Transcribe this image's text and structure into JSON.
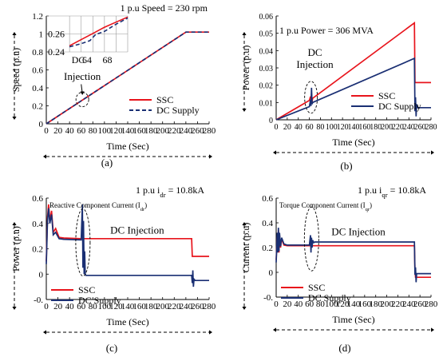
{
  "colors": {
    "ssc": "#e8141c",
    "dc": "#1a2f73",
    "axis": "#000000",
    "grid": "#9a9a9a"
  },
  "chart_data": [
    {
      "id": "a",
      "type": "line",
      "panel_label": "(a)",
      "header": "1 p.u Speed = 230 rpm",
      "xlabel": "Time (Sec)",
      "ylabel": "Speed (p.u)",
      "xlim": [
        0,
        280
      ],
      "ylim": [
        0,
        1.2
      ],
      "xticks": [
        "0",
        "20",
        "40",
        "60",
        "80",
        "100",
        "120",
        "140",
        "160",
        "180",
        "200",
        "220",
        "240",
        "260",
        "280"
      ],
      "yticks": [
        "0",
        "0.2",
        "0.4",
        "0.6",
        "0.8",
        "1",
        "1.2"
      ],
      "legend": {
        "position": "bottom-right",
        "entries": [
          "SSC",
          "DC Supply"
        ]
      },
      "annotation": "Injection",
      "series": [
        {
          "name": "SSC",
          "style": "solid",
          "color_key": "ssc",
          "points": [
            [
              0,
              0
            ],
            [
              240,
              1.02
            ],
            [
              280,
              1.02
            ]
          ]
        },
        {
          "name": "DC Supply",
          "style": "dashed",
          "color_key": "dc",
          "points": [
            [
              0,
              0
            ],
            [
              240,
              1.02
            ],
            [
              280,
              1.02
            ]
          ]
        }
      ],
      "inset": {
        "label": "DC",
        "xticks": [
          "64",
          "68"
        ],
        "yticks": [
          "0.24",
          "0.26"
        ],
        "xlim": [
          60,
          70
        ],
        "ylim": [
          0.235,
          0.27
        ],
        "series": [
          {
            "name": "SSC",
            "style": "solid",
            "color_key": "ssc",
            "points": [
              [
                60,
                0.241
              ],
              [
                62,
                0.247
              ],
              [
                64,
                0.253
              ],
              [
                66,
                0.259
              ],
              [
                68,
                0.264
              ],
              [
                70,
                0.269
              ]
            ]
          },
          {
            "name": "DC Supply",
            "style": "dashed",
            "color_key": "dc",
            "points": [
              [
                60,
                0.24
              ],
              [
                62,
                0.243
              ],
              [
                63.5,
                0.246
              ],
              [
                64.5,
                0.252
              ],
              [
                66,
                0.255
              ],
              [
                68,
                0.262
              ],
              [
                70,
                0.268
              ]
            ]
          }
        ]
      }
    },
    {
      "id": "b",
      "type": "line",
      "panel_label": "(b)",
      "header": "1 p.u Power = 306 MVA",
      "xlabel": "Time (Sec)",
      "ylabel": "Power (p.u)",
      "xlim": [
        0,
        280
      ],
      "ylim": [
        0,
        0.06
      ],
      "xticks": [
        "0",
        "20",
        "40",
        "60",
        "80",
        "100",
        "120",
        "140",
        "160",
        "180",
        "200",
        "220",
        "240",
        "260",
        "280"
      ],
      "yticks": [
        "0",
        "0.01",
        "0.02",
        "0.03",
        "0.04",
        "0.05",
        "0.06"
      ],
      "legend": {
        "position": "bottom-right",
        "entries": [
          "SSC",
          "DC Supply"
        ]
      },
      "annotation": "DC\nInjection",
      "series": [
        {
          "name": "SSC",
          "style": "solid",
          "color_key": "ssc",
          "points": [
            [
              0,
              0
            ],
            [
              60,
              0.0112
            ],
            [
              62,
              0.0135
            ],
            [
              63,
              0.0098
            ],
            [
              64,
              0.015
            ],
            [
              65,
              0.0105
            ],
            [
              66,
              0.0124
            ],
            [
              250,
              0.056
            ],
            [
              251,
              0.0215
            ],
            [
              280,
              0.0215
            ]
          ]
        },
        {
          "name": "DC Supply",
          "style": "solid",
          "color_key": "dc",
          "points": [
            [
              0,
              0
            ],
            [
              60,
              0.0076
            ],
            [
              62,
              0.0115
            ],
            [
              63,
              0.008
            ],
            [
              64,
              0.0185
            ],
            [
              65,
              0.009
            ],
            [
              66,
              0.01
            ],
            [
              250,
              0.0355
            ],
            [
              251,
              0.005
            ],
            [
              252,
              0.013
            ],
            [
              253,
              0.002
            ],
            [
              254,
              0.009
            ],
            [
              256,
              0.007
            ],
            [
              280,
              0.007
            ]
          ]
        }
      ]
    },
    {
      "id": "c",
      "type": "line",
      "panel_label": "(c)",
      "header": "1 p.u i",
      "header_sub": "dr",
      "header_tail": " = 10.8kA",
      "inner_title": "Reactive Component Current (I",
      "inner_title_sub": "dr",
      "inner_title_tail": ")",
      "annotation": "DC Injection",
      "xlabel": "Time (Sec)",
      "ylabel": "Power (p.u)",
      "xlim": [
        0,
        280
      ],
      "ylim": [
        -0.2,
        0.6
      ],
      "xticks": [
        "0",
        "20",
        "40",
        "60",
        "80",
        "100",
        "120",
        "140",
        "160",
        "180",
        "200",
        "220",
        "240",
        "260",
        "280"
      ],
      "yticks": [
        "-0.",
        "0",
        "0.2",
        "0.4",
        "0.6"
      ],
      "legend": {
        "position": "bottom-left",
        "entries": [
          "SSC",
          "DC Supply"
        ]
      },
      "series": [
        {
          "name": "SSC",
          "style": "solid",
          "color_key": "ssc",
          "points": [
            [
              0,
              0.1
            ],
            [
              2,
              0.45
            ],
            [
              4,
              0.55
            ],
            [
              6,
              0.42
            ],
            [
              9,
              0.5
            ],
            [
              12,
              0.33
            ],
            [
              16,
              0.36
            ],
            [
              22,
              0.29
            ],
            [
              30,
              0.285
            ],
            [
              60,
              0.28
            ],
            [
              250,
              0.28
            ],
            [
              251,
              0.14
            ],
            [
              280,
              0.14
            ]
          ]
        },
        {
          "name": "DC Supply",
          "style": "solid",
          "color_key": "dc",
          "points": [
            [
              0,
              0.08
            ],
            [
              2,
              0.42
            ],
            [
              4,
              0.52
            ],
            [
              6,
              0.4
            ],
            [
              9,
              0.47
            ],
            [
              12,
              0.31
            ],
            [
              16,
              0.33
            ],
            [
              22,
              0.28
            ],
            [
              30,
              0.275
            ],
            [
              60,
              0.27
            ],
            [
              62,
              0.55
            ],
            [
              63,
              0.05
            ],
            [
              64,
              0.42
            ],
            [
              65,
              0.0
            ],
            [
              66,
              0.18
            ],
            [
              67,
              0.0
            ],
            [
              68,
              -0.01
            ],
            [
              250,
              -0.01
            ],
            [
              251,
              -0.07
            ],
            [
              252,
              0.03
            ],
            [
              253,
              -0.1
            ],
            [
              254,
              -0.04
            ],
            [
              256,
              -0.05
            ],
            [
              280,
              -0.05
            ]
          ]
        }
      ]
    },
    {
      "id": "d",
      "type": "line",
      "panel_label": "(d)",
      "header": "1 p.u i",
      "header_sub": "qr",
      "header_tail": " = 10.8kA",
      "inner_title": "Torque Component Current (I",
      "inner_title_sub": "qr",
      "inner_title_tail": ")",
      "annotation": "DC Injection",
      "xlabel": "Time (Sec)",
      "ylabel": "Current (p.u)",
      "xlim": [
        0,
        280
      ],
      "ylim": [
        -0.2,
        0.6
      ],
      "xticks": [
        "0",
        "20",
        "40",
        "60",
        "80",
        "100",
        "120",
        "140",
        "160",
        "180",
        "200",
        "220",
        "240",
        "260",
        "280"
      ],
      "yticks": [
        "-0.",
        "0",
        "0.2",
        "0.4",
        "0.6"
      ],
      "legend": {
        "position": "bottom-left",
        "entries": [
          "SSC",
          "DC Supply"
        ]
      },
      "series": [
        {
          "name": "SSC",
          "style": "solid",
          "color_key": "ssc",
          "points": [
            [
              0,
              0.1
            ],
            [
              2,
              0.3
            ],
            [
              3,
              0.18
            ],
            [
              4,
              0.34
            ],
            [
              5,
              0.16
            ],
            [
              6,
              0.3
            ],
            [
              8,
              0.2
            ],
            [
              10,
              0.27
            ],
            [
              14,
              0.22
            ],
            [
              20,
              0.215
            ],
            [
              60,
              0.215
            ],
            [
              250,
              0.215
            ],
            [
              251,
              0.02
            ],
            [
              252,
              -0.04
            ],
            [
              280,
              -0.04
            ]
          ]
        },
        {
          "name": "DC Supply",
          "style": "solid",
          "color_key": "dc",
          "points": [
            [
              0,
              0.08
            ],
            [
              2,
              0.32
            ],
            [
              3,
              0.16
            ],
            [
              4,
              0.36
            ],
            [
              5,
              0.17
            ],
            [
              6,
              0.32
            ],
            [
              8,
              0.21
            ],
            [
              10,
              0.28
            ],
            [
              14,
              0.23
            ],
            [
              20,
              0.22
            ],
            [
              60,
              0.22
            ],
            [
              62,
              0.3
            ],
            [
              63,
              0.16
            ],
            [
              64,
              0.28
            ],
            [
              65,
              0.2
            ],
            [
              66,
              0.26
            ],
            [
              68,
              0.24
            ],
            [
              70,
              0.245
            ],
            [
              250,
              0.245
            ],
            [
              251,
              -0.02
            ],
            [
              252,
              0.04
            ],
            [
              253,
              -0.08
            ],
            [
              254,
              -0.01
            ],
            [
              256,
              -0.01
            ],
            [
              280,
              -0.01
            ]
          ]
        }
      ]
    }
  ]
}
